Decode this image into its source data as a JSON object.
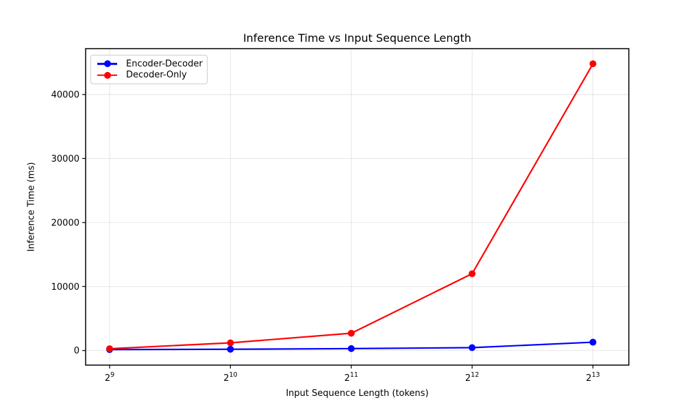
{
  "figure": {
    "background": "#ffffff",
    "text_color": "#000000",
    "spine_color": "#000000",
    "grid_color": "#b0b0b0"
  },
  "chart_data": {
    "type": "line",
    "title": "Inference Time vs Input Sequence Length",
    "xlabel": "Input Sequence Length (tokens)",
    "ylabel": "Inference Time (ms)",
    "categories": [
      "2^9",
      "2^10",
      "2^11",
      "2^12",
      "2^13"
    ],
    "x_tick_labels": [
      {
        "base": "2",
        "exponent": "9"
      },
      {
        "base": "2",
        "exponent": "10"
      },
      {
        "base": "2",
        "exponent": "11"
      },
      {
        "base": "2",
        "exponent": "12"
      },
      {
        "base": "2",
        "exponent": "13"
      }
    ],
    "series": [
      {
        "name": "Encoder-Decoder",
        "color": "#0000ff",
        "values": [
          150,
          200,
          300,
          450,
          1300
        ]
      },
      {
        "name": "Decoder-Only",
        "color": "#ff0000",
        "values": [
          280,
          1200,
          2700,
          12000,
          44800
        ]
      }
    ],
    "y_ticks": [
      0,
      10000,
      20000,
      30000,
      40000
    ],
    "ylim": [
      -2280,
      47170
    ],
    "grid": true,
    "legend_position": "upper left",
    "marker": "circle",
    "line_width": 2
  }
}
